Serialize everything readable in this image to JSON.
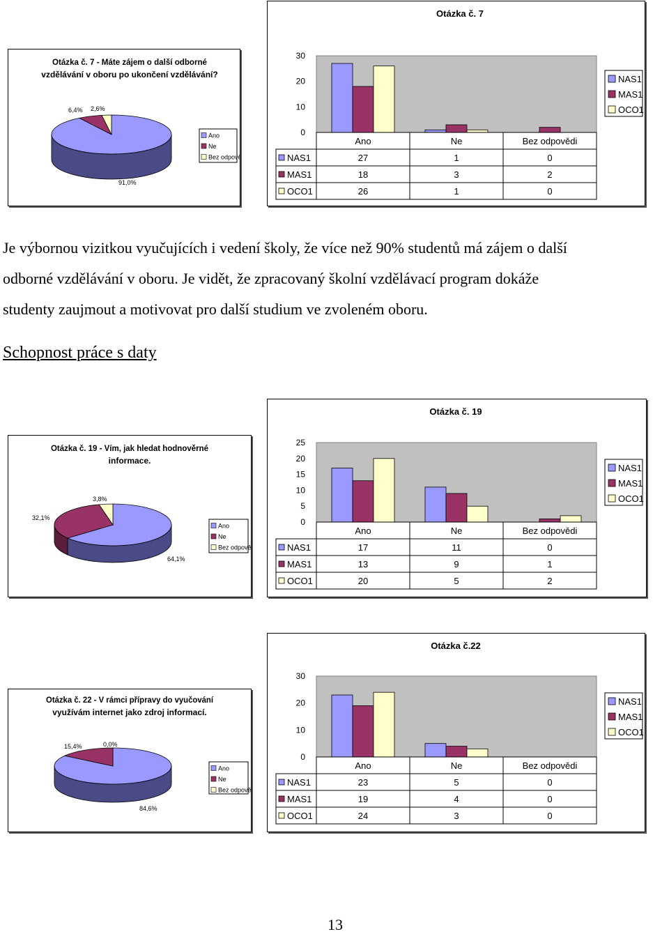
{
  "colors": {
    "NAS1": "#9999ff",
    "MAS1": "#993366",
    "OCO1": "#ffffcc",
    "plot_bg": "#c0c0c0",
    "pie_side_ano": "#4a4a86",
    "pie_side_ne": "#5a1e3c"
  },
  "q7": {
    "pie": {
      "title_line1": "Otázka č. 7 - Máte zájem o další odborné",
      "title_line2": "vzdělávání v oboru po ukončení vzdělávání?",
      "legend": [
        "Ano",
        "Ne",
        "Bez odpovědi"
      ],
      "chart_data": {
        "type": "pie",
        "labels": [
          "Ano",
          "Ne",
          "Bez odpovědi"
        ],
        "values": [
          91.0,
          6.4,
          2.6
        ],
        "value_labels": [
          "91,0%",
          "6,4%",
          "2,6%"
        ]
      }
    },
    "bar": {
      "title": "Otázka č. 7",
      "chart_data": {
        "type": "bar",
        "categories": [
          "Ano",
          "Ne",
          "Bez odpovědi"
        ],
        "series": [
          {
            "name": "NAS1",
            "values": [
              27,
              1,
              0
            ]
          },
          {
            "name": "MAS1",
            "values": [
              18,
              3,
              2
            ]
          },
          {
            "name": "OCO1",
            "values": [
              26,
              1,
              0
            ]
          }
        ],
        "ylim": [
          0,
          30
        ],
        "yticks": [
          "0",
          "10",
          "20",
          "30"
        ]
      }
    }
  },
  "paragraph_lines": [
    "Je výbornou vizitkou vyučujících i vedení školy, že více než 90% studentů má zájem o další",
    "odborné vzdělávání v oboru. Je vidět, že zpracovaný školní vzdělávací program dokáže",
    "studenty zaujmout a motivovat pro další studium ve zvoleném oboru."
  ],
  "section_heading": "Schopnost práce s daty",
  "q19": {
    "pie": {
      "title_line1": "Otázka č. 19 - Vím, jak hledat hodnověrné",
      "title_line2": "informace.",
      "legend": [
        "Ano",
        "Ne",
        "Bez odpovědi"
      ],
      "chart_data": {
        "type": "pie",
        "labels": [
          "Ano",
          "Ne",
          "Bez odpovědi"
        ],
        "values": [
          64.1,
          32.1,
          3.8
        ],
        "value_labels": [
          "64,1%",
          "32,1%",
          "3,8%"
        ]
      }
    },
    "bar": {
      "title": "Otázka č. 19",
      "chart_data": {
        "type": "bar",
        "categories": [
          "Ano",
          "Ne",
          "Bez odpovědi"
        ],
        "series": [
          {
            "name": "NAS1",
            "values": [
              17,
              11,
              0
            ]
          },
          {
            "name": "MAS1",
            "values": [
              13,
              9,
              1
            ]
          },
          {
            "name": "OCO1",
            "values": [
              20,
              5,
              2
            ]
          }
        ],
        "ylim": [
          0,
          25
        ],
        "yticks": [
          "0",
          "5",
          "10",
          "15",
          "20",
          "25"
        ]
      }
    }
  },
  "q22": {
    "pie": {
      "title_line1": "Otázka č. 22 - V rámci přípravy do vyučování",
      "title_line2": "využívám internet jako zdroj informací.",
      "legend": [
        "Ano",
        "Ne",
        "Bez odpovědi"
      ],
      "chart_data": {
        "type": "pie",
        "labels": [
          "Ano",
          "Ne",
          "Bez odpovědi"
        ],
        "values": [
          84.6,
          15.4,
          0.0
        ],
        "value_labels": [
          "84,6%",
          "15,4%",
          "0,0%"
        ]
      }
    },
    "bar": {
      "title": "Otázka č.22",
      "chart_data": {
        "type": "bar",
        "categories": [
          "Ano",
          "Ne",
          "Bez odpovědi"
        ],
        "series": [
          {
            "name": "NAS1",
            "values": [
              23,
              5,
              0
            ]
          },
          {
            "name": "MAS1",
            "values": [
              19,
              4,
              0
            ]
          },
          {
            "name": "OCO1",
            "values": [
              24,
              3,
              0
            ]
          }
        ],
        "ylim": [
          0,
          30
        ],
        "yticks": [
          "0",
          "10",
          "20",
          "30"
        ]
      }
    }
  },
  "page_number": "13"
}
